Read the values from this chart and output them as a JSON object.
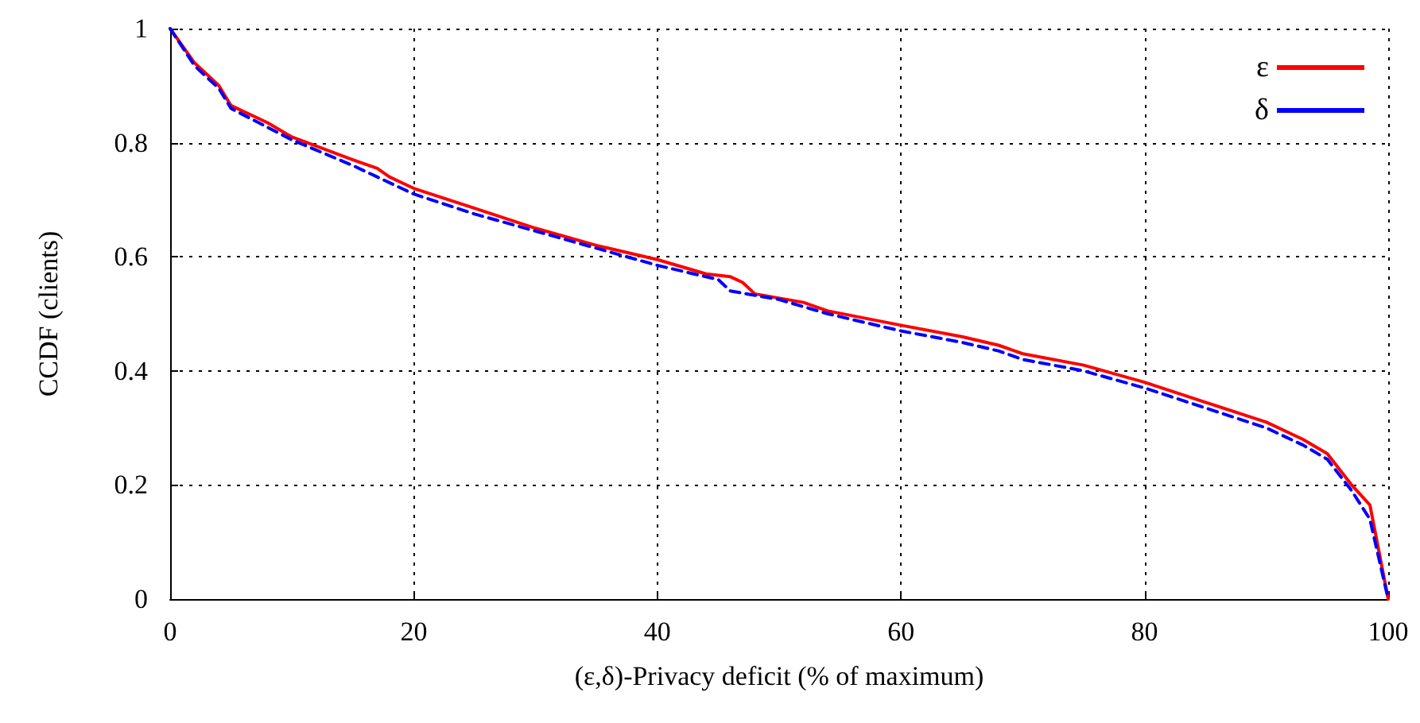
{
  "chart_data": {
    "type": "line",
    "xlabel": "(ε,δ)-Privacy deficit (% of maximum)",
    "ylabel": "CCDF (clients)",
    "xlim": [
      0,
      100
    ],
    "xticks": [
      0,
      20,
      40,
      60,
      80,
      100
    ],
    "ylim": [
      0,
      1
    ],
    "yticks": [
      0,
      0.2,
      0.4,
      0.6,
      0.8,
      1
    ],
    "grid": true,
    "legend": "top right",
    "marker": "none",
    "series": [
      {
        "name": "ε",
        "color": "#ff0000",
        "line_style": "solid",
        "x": [
          0,
          2,
          4,
          5,
          8,
          10,
          15,
          17,
          18,
          20,
          25,
          30,
          35,
          40,
          44,
          46,
          47,
          48,
          52,
          54,
          60,
          65,
          68,
          70,
          75,
          80,
          85,
          90,
          93,
          95,
          97,
          98.5,
          100
        ],
        "values": [
          1,
          0.94,
          0.9,
          0.865,
          0.835,
          0.81,
          0.77,
          0.755,
          0.74,
          0.72,
          0.685,
          0.65,
          0.62,
          0.595,
          0.57,
          0.565,
          0.555,
          0.535,
          0.52,
          0.505,
          0.48,
          0.46,
          0.445,
          0.43,
          0.41,
          0.38,
          0.345,
          0.31,
          0.28,
          0.255,
          0.2,
          0.165,
          0
        ]
      },
      {
        "name": "δ",
        "color": "#0000ff",
        "line_style": "dashed",
        "x": [
          0,
          2,
          4,
          5,
          10,
          15,
          20,
          25,
          30,
          35,
          40,
          45,
          46,
          50,
          54,
          60,
          65,
          68,
          70,
          75,
          80,
          85,
          90,
          93,
          95,
          97,
          98.5,
          100
        ],
        "values": [
          1,
          0.935,
          0.895,
          0.86,
          0.805,
          0.76,
          0.71,
          0.675,
          0.645,
          0.615,
          0.585,
          0.56,
          0.54,
          0.525,
          0.5,
          0.47,
          0.45,
          0.435,
          0.42,
          0.4,
          0.37,
          0.335,
          0.3,
          0.27,
          0.245,
          0.19,
          0.14,
          0
        ]
      }
    ]
  }
}
